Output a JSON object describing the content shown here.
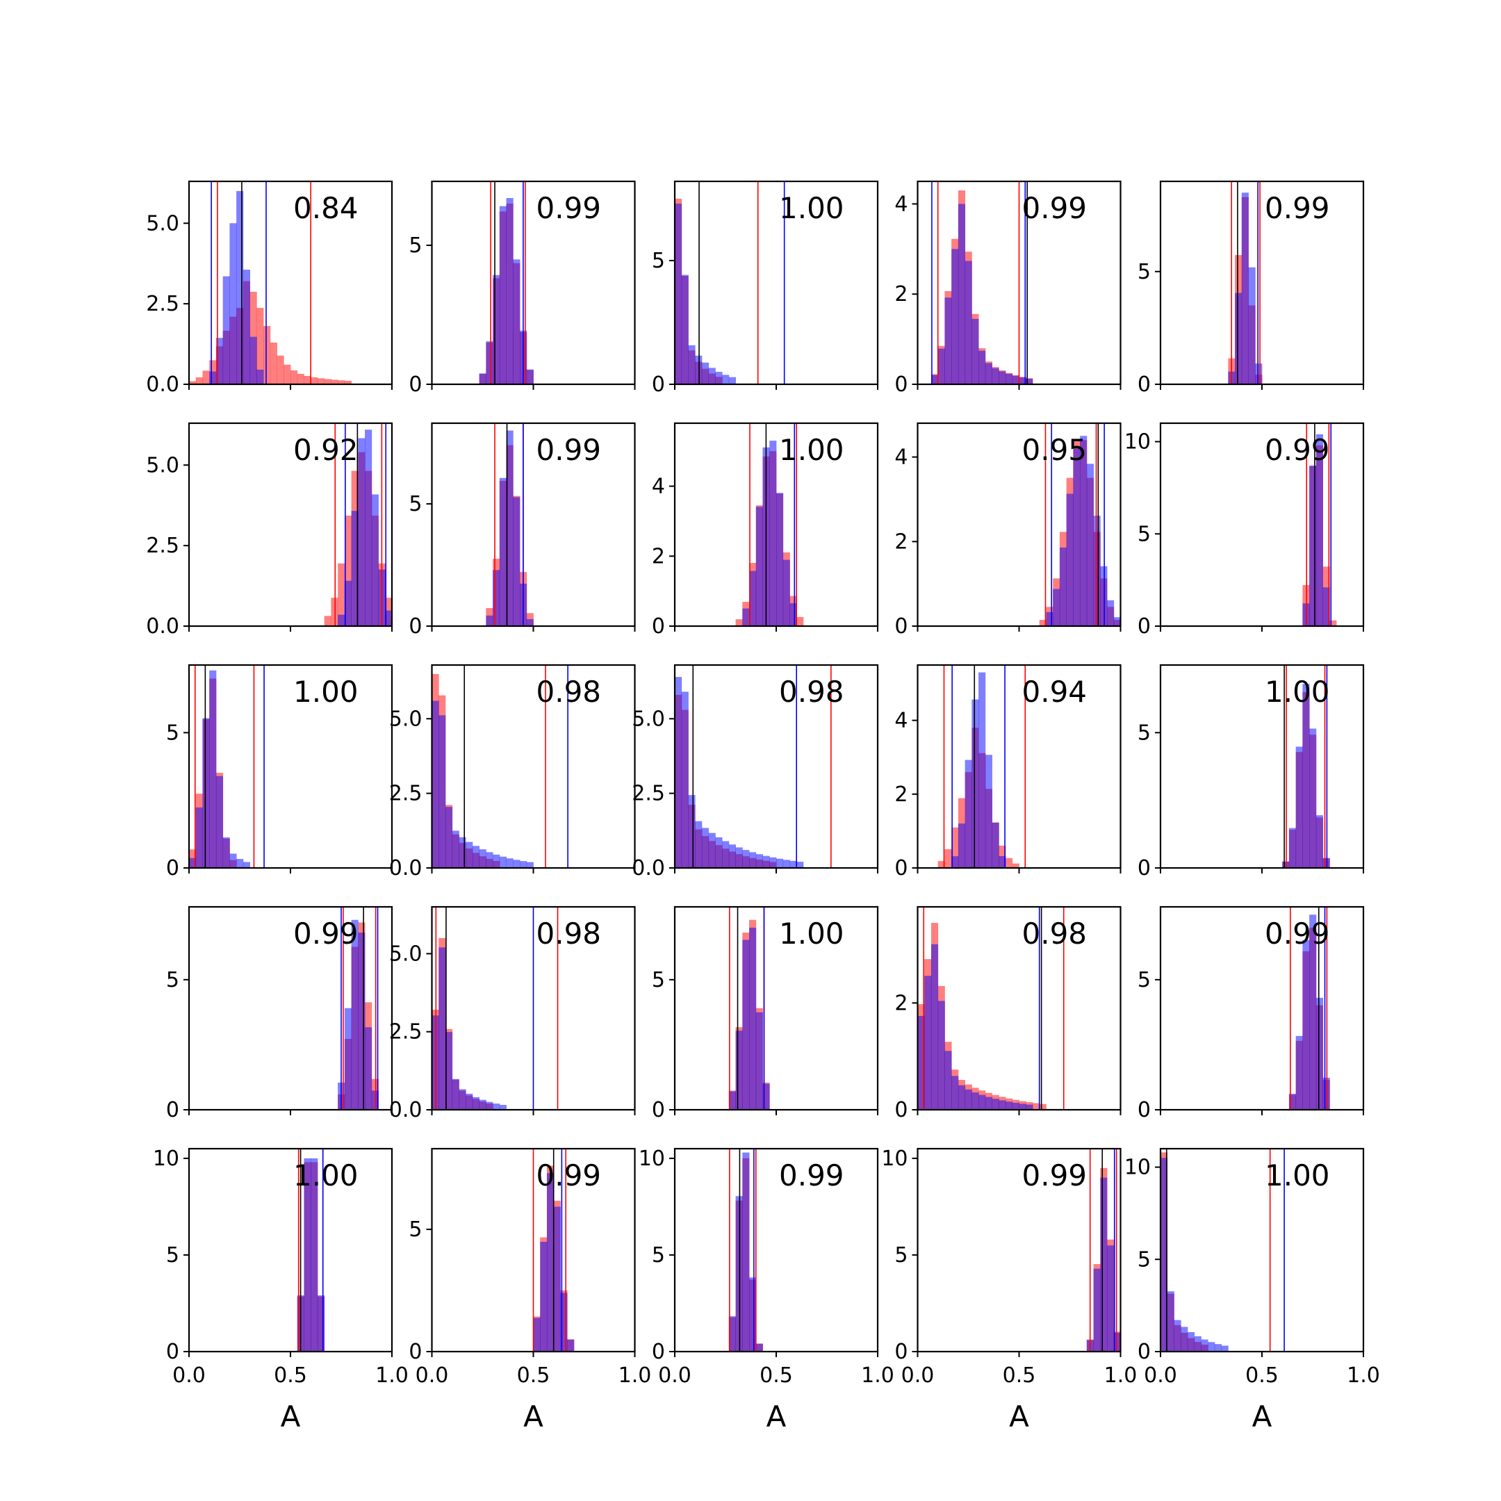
{
  "chart_data": {
    "type": "histogram-grid",
    "rows": 5,
    "cols": 5,
    "xlim": [
      0,
      1
    ],
    "xticks": [
      "0.0",
      "0.5",
      "1.0"
    ],
    "xlabel": "A",
    "colors": {
      "red": "#ff0000",
      "blue": "#0000ff",
      "black": "#000000",
      "red_fill": "#ff7373",
      "blue_fill": "#7373ff",
      "overlap_fill": "#7f3fbf"
    },
    "panels": [
      {
        "score": "0.84",
        "ymax": 6.3,
        "yticks": [
          "0.0",
          "2.5",
          "5.0"
        ],
        "ytick_values": [
          0,
          2.5,
          5
        ],
        "red": {
          "mode": 0.27,
          "sigma": 0.1,
          "tail": 0.25,
          "peak": 3.2
        },
        "blue": {
          "mode": 0.23,
          "sigma": 0.05,
          "tail": 0.05,
          "peak": 6.0
        },
        "lines": {
          "red": [
            0.14,
            0.6
          ],
          "blue": [
            0.11,
            0.38
          ],
          "black": [
            0.26
          ]
        }
      },
      {
        "score": "0.99",
        "ymax": 7.3,
        "yticks": [
          "0",
          "5"
        ],
        "ytick_values": [
          0,
          5
        ],
        "red": {
          "mode": 0.37,
          "sigma": 0.05,
          "tail": 0,
          "peak": 6.5
        },
        "blue": {
          "mode": 0.37,
          "sigma": 0.05,
          "tail": 0,
          "peak": 6.7
        },
        "lines": {
          "red": [
            0.29,
            0.46
          ],
          "blue": [
            0.45
          ],
          "black": [
            0.31
          ]
        }
      },
      {
        "score": "1.00",
        "ymax": 8.2,
        "yticks": [
          "0",
          "5"
        ],
        "ytick_values": [
          0,
          5
        ],
        "red": {
          "mode": 0.02,
          "sigma": 0.02,
          "tail": 0.09,
          "peak": 7.5
        },
        "blue": {
          "mode": 0.02,
          "sigma": 0.02,
          "tail": 0.12,
          "peak": 7.3
        },
        "lines": {
          "red": [
            0.41
          ],
          "blue": [
            0.54
          ],
          "black": [
            0.12
          ]
        }
      },
      {
        "score": "0.99",
        "ymax": 4.5,
        "yticks": [
          "0",
          "2",
          "4"
        ],
        "ytick_values": [
          0,
          2,
          4
        ],
        "red": {
          "mode": 0.2,
          "sigma": 0.05,
          "tail": 0.16,
          "peak": 4.3
        },
        "blue": {
          "mode": 0.2,
          "sigma": 0.05,
          "tail": 0.16,
          "peak": 4.0
        },
        "lines": {
          "red": [
            0.1,
            0.5
          ],
          "blue": [
            0.07,
            0.53
          ],
          "black": [
            0.54
          ]
        }
      },
      {
        "score": "0.99",
        "ymax": 9.0,
        "yticks": [
          "0",
          "5"
        ],
        "ytick_values": [
          0,
          5
        ],
        "red": {
          "mode": 0.41,
          "sigma": 0.03,
          "tail": 0,
          "peak": 8.3
        },
        "blue": {
          "mode": 0.42,
          "sigma": 0.03,
          "tail": 0,
          "peak": 8.5
        },
        "lines": {
          "red": [
            0.35,
            0.49
          ],
          "blue": [
            0.48
          ],
          "black": [
            0.38
          ]
        }
      },
      {
        "score": "0.92",
        "ymax": 6.3,
        "yticks": [
          "0.0",
          "2.5",
          "5.0"
        ],
        "ytick_values": [
          0,
          2.5,
          5
        ],
        "red": {
          "mode": 0.85,
          "sigma": 0.07,
          "tail": 0,
          "peak": 5.4
        },
        "blue": {
          "mode": 0.87,
          "sigma": 0.05,
          "tail": 0,
          "peak": 6.1
        },
        "lines": {
          "red": [
            0.72,
            0.95
          ],
          "blue": [
            0.77,
            0.97
          ],
          "black": [
            0.83
          ]
        }
      },
      {
        "score": "0.99",
        "ymax": 8.3,
        "yticks": [
          "0",
          "5"
        ],
        "ytick_values": [
          0,
          5
        ],
        "red": {
          "mode": 0.38,
          "sigma": 0.045,
          "tail": 0,
          "peak": 7.4
        },
        "blue": {
          "mode": 0.38,
          "sigma": 0.04,
          "tail": 0,
          "peak": 8.0
        },
        "lines": {
          "red": [
            0.31,
            0.45
          ],
          "blue": [
            0.45
          ],
          "black": [
            0.37
          ]
        }
      },
      {
        "score": "1.00",
        "ymax": 5.8,
        "yticks": [
          "0",
          "2",
          "4"
        ],
        "ytick_values": [
          0,
          2,
          4
        ],
        "red": {
          "mode": 0.47,
          "sigma": 0.06,
          "tail": 0,
          "peak": 5.0
        },
        "blue": {
          "mode": 0.47,
          "sigma": 0.055,
          "tail": 0,
          "peak": 5.3
        },
        "lines": {
          "red": [
            0.37,
            0.6
          ],
          "blue": [
            0.59
          ],
          "black": [
            0.45
          ]
        }
      },
      {
        "score": "0.95",
        "ymax": 4.8,
        "yticks": [
          "0",
          "2",
          "4"
        ],
        "ytick_values": [
          0,
          2,
          4
        ],
        "red": {
          "mode": 0.8,
          "sigma": 0.07,
          "tail": 0,
          "peak": 4.4
        },
        "blue": {
          "mode": 0.81,
          "sigma": 0.07,
          "tail": 0,
          "peak": 4.5
        },
        "lines": {
          "red": [
            0.63,
            0.88
          ],
          "blue": [
            0.66,
            0.92
          ],
          "black": [
            0.89
          ]
        }
      },
      {
        "score": "0.99",
        "ymax": 11.0,
        "yticks": [
          "0",
          "5",
          "10"
        ],
        "ytick_values": [
          0,
          5,
          10
        ],
        "red": {
          "mode": 0.77,
          "sigma": 0.03,
          "tail": 0,
          "peak": 9.8
        },
        "blue": {
          "mode": 0.77,
          "sigma": 0.025,
          "tail": 0,
          "peak": 10.4
        },
        "lines": {
          "red": [
            0.72,
            0.83
          ],
          "blue": [
            0.84
          ],
          "black": [
            0.76
          ]
        }
      },
      {
        "score": "1.00",
        "ymax": 7.5,
        "yticks": [
          "0",
          "5"
        ],
        "ytick_values": [
          0,
          5
        ],
        "red": {
          "mode": 0.1,
          "sigma": 0.04,
          "tail": 0.05,
          "peak": 7.0
        },
        "blue": {
          "mode": 0.1,
          "sigma": 0.035,
          "tail": 0.08,
          "peak": 7.3
        },
        "lines": {
          "red": [
            0.03,
            0.32
          ],
          "blue": [
            0.37
          ],
          "black": [
            0.08
          ]
        }
      },
      {
        "score": "0.98",
        "ymax": 6.8,
        "yticks": [
          "0.0",
          "2.5",
          "5.0"
        ],
        "ytick_values": [
          0,
          2.5,
          5
        ],
        "red": {
          "mode": 0.02,
          "sigma": 0.03,
          "tail": 0.13,
          "peak": 6.5
        },
        "blue": {
          "mode": 0.02,
          "sigma": 0.03,
          "tail": 0.2,
          "peak": 5.6
        },
        "lines": {
          "red": [
            0.56
          ],
          "blue": [
            0.67
          ],
          "black": [
            0.16
          ]
        }
      },
      {
        "score": "0.98",
        "ymax": 6.8,
        "yticks": [
          "0.0",
          "2.5",
          "5.0"
        ],
        "ytick_values": [
          0,
          2.5,
          5
        ],
        "red": {
          "mode": 0.02,
          "sigma": 0.03,
          "tail": 0.2,
          "peak": 5.8
        },
        "blue": {
          "mode": 0.02,
          "sigma": 0.03,
          "tail": 0.25,
          "peak": 6.4
        },
        "lines": {
          "red": [
            0.77
          ],
          "blue": [
            0.6
          ],
          "black": [
            0.09
          ]
        }
      },
      {
        "score": "0.94",
        "ymax": 5.5,
        "yticks": [
          "0",
          "2",
          "4"
        ],
        "ytick_values": [
          0,
          2,
          4
        ],
        "red": {
          "mode": 0.28,
          "sigma": 0.07,
          "tail": 0.08,
          "peak": 3.8
        },
        "blue": {
          "mode": 0.3,
          "sigma": 0.05,
          "tail": 0.02,
          "peak": 5.3
        },
        "lines": {
          "red": [
            0.13,
            0.53
          ],
          "blue": [
            0.17,
            0.43
          ],
          "black": [
            0.28
          ]
        }
      },
      {
        "score": "1.00",
        "ymax": 7.5,
        "yticks": [
          "0",
          "5"
        ],
        "ytick_values": [
          0,
          5
        ],
        "red": {
          "mode": 0.72,
          "sigma": 0.04,
          "tail": 0,
          "peak": 6.5
        },
        "blue": {
          "mode": 0.72,
          "sigma": 0.04,
          "tail": 0,
          "peak": 6.8
        },
        "lines": {
          "red": [
            0.62,
            0.81
          ],
          "blue": [
            0.82
          ],
          "black": [
            0.61
          ]
        }
      },
      {
        "score": "0.99",
        "ymax": 7.8,
        "yticks": [
          "0",
          "5"
        ],
        "ytick_values": [
          0,
          5
        ],
        "red": {
          "mode": 0.84,
          "sigma": 0.04,
          "tail": 0,
          "peak": 7.2
        },
        "blue": {
          "mode": 0.83,
          "sigma": 0.04,
          "tail": 0,
          "peak": 7.3
        },
        "lines": {
          "red": [
            0.76,
            0.92
          ],
          "blue": [
            0.75,
            0.93
          ],
          "black": [
            0.86
          ]
        }
      },
      {
        "score": "0.98",
        "ymax": 6.5,
        "yticks": [
          "0.0",
          "2.5",
          "5.0"
        ],
        "ytick_values": [
          0,
          2.5,
          5
        ],
        "red": {
          "mode": 0.04,
          "sigma": 0.03,
          "tail": 0.12,
          "peak": 5.5
        },
        "blue": {
          "mode": 0.04,
          "sigma": 0.03,
          "tail": 0.14,
          "peak": 5.2
        },
        "lines": {
          "red": [
            0.02,
            0.62
          ],
          "blue": [
            0.5
          ],
          "black": [
            0.07
          ]
        }
      },
      {
        "score": "1.00",
        "ymax": 7.8,
        "yticks": [
          "0",
          "5"
        ],
        "ytick_values": [
          0,
          5
        ],
        "red": {
          "mode": 0.37,
          "sigma": 0.04,
          "tail": 0,
          "peak": 7.3
        },
        "blue": {
          "mode": 0.37,
          "sigma": 0.04,
          "tail": 0,
          "peak": 7.0
        },
        "lines": {
          "red": [
            0.27,
            0.44
          ],
          "blue": [
            0.44
          ],
          "black": [
            0.31
          ]
        }
      },
      {
        "score": "0.98",
        "ymax": 3.8,
        "yticks": [
          "0",
          "2"
        ],
        "ytick_values": [
          0,
          2
        ],
        "red": {
          "mode": 0.06,
          "sigma": 0.05,
          "tail": 0.25,
          "peak": 3.5
        },
        "blue": {
          "mode": 0.06,
          "sigma": 0.05,
          "tail": 0.22,
          "peak": 3.1
        },
        "lines": {
          "red": [
            0.03,
            0.72
          ],
          "blue": [
            0.6
          ],
          "black": [
            0.61
          ]
        }
      },
      {
        "score": "0.99",
        "ymax": 7.8,
        "yticks": [
          "0",
          "5"
        ],
        "ytick_values": [
          0,
          5
        ],
        "red": {
          "mode": 0.74,
          "sigma": 0.04,
          "tail": 0,
          "peak": 7.0
        },
        "blue": {
          "mode": 0.74,
          "sigma": 0.04,
          "tail": 0,
          "peak": 7.5
        },
        "lines": {
          "red": [
            0.64,
            0.82
          ],
          "blue": [
            0.81
          ],
          "black": [
            0.78
          ]
        }
      },
      {
        "score": "1.00",
        "ymax": 10.5,
        "yticks": [
          "0",
          "5",
          "10"
        ],
        "ytick_values": [
          0,
          5,
          10
        ],
        "red": {
          "mode": 0.6,
          "sigma": 0.03,
          "tail": 0,
          "peak": 9.8
        },
        "blue": {
          "mode": 0.6,
          "sigma": 0.03,
          "tail": 0,
          "peak": 10.0
        },
        "lines": {
          "red": [
            0.54,
            0.66
          ],
          "blue": [
            0.66
          ],
          "black": [
            0.55
          ]
        }
      },
      {
        "score": "0.99",
        "ymax": 8.3,
        "yticks": [
          "0",
          "5"
        ],
        "ytick_values": [
          0,
          5
        ],
        "red": {
          "mode": 0.59,
          "sigma": 0.04,
          "tail": 0,
          "peak": 7.6
        },
        "blue": {
          "mode": 0.59,
          "sigma": 0.04,
          "tail": 0,
          "peak": 7.3
        },
        "lines": {
          "red": [
            0.5,
            0.66
          ],
          "blue": [
            0.64
          ],
          "black": [
            0.6
          ]
        }
      },
      {
        "score": "0.99",
        "ymax": 10.5,
        "yticks": [
          "0",
          "5",
          "10"
        ],
        "ytick_values": [
          0,
          5,
          10
        ],
        "red": {
          "mode": 0.34,
          "sigma": 0.03,
          "tail": 0,
          "peak": 10.0
        },
        "blue": {
          "mode": 0.34,
          "sigma": 0.03,
          "tail": 0,
          "peak": 10.3
        },
        "lines": {
          "red": [
            0.27,
            0.4
          ],
          "blue": [
            0.39
          ],
          "black": [
            0.32
          ]
        }
      },
      {
        "score": "0.99",
        "ymax": 10.5,
        "yticks": [
          "0",
          "5",
          "10"
        ],
        "ytick_values": [
          0,
          5,
          10
        ],
        "red": {
          "mode": 0.92,
          "sigma": 0.03,
          "tail": 0,
          "peak": 9.5
        },
        "blue": {
          "mode": 0.92,
          "sigma": 0.03,
          "tail": 0,
          "peak": 9.0
        },
        "lines": {
          "red": [
            0.85,
            0.98
          ],
          "blue": [
            0.97
          ],
          "black": [
            0.91
          ]
        }
      },
      {
        "score": "1.00",
        "ymax": 11.0,
        "yticks": [
          "0",
          "5",
          "10"
        ],
        "ytick_values": [
          0,
          5,
          10
        ],
        "red": {
          "mode": 0.01,
          "sigma": 0.02,
          "tail": 0.1,
          "peak": 10.8
        },
        "blue": {
          "mode": 0.01,
          "sigma": 0.02,
          "tail": 0.14,
          "peak": 10.5
        },
        "lines": {
          "red": [
            0.54
          ],
          "blue": [
            0.61
          ],
          "black": [
            0.03
          ]
        }
      }
    ]
  }
}
